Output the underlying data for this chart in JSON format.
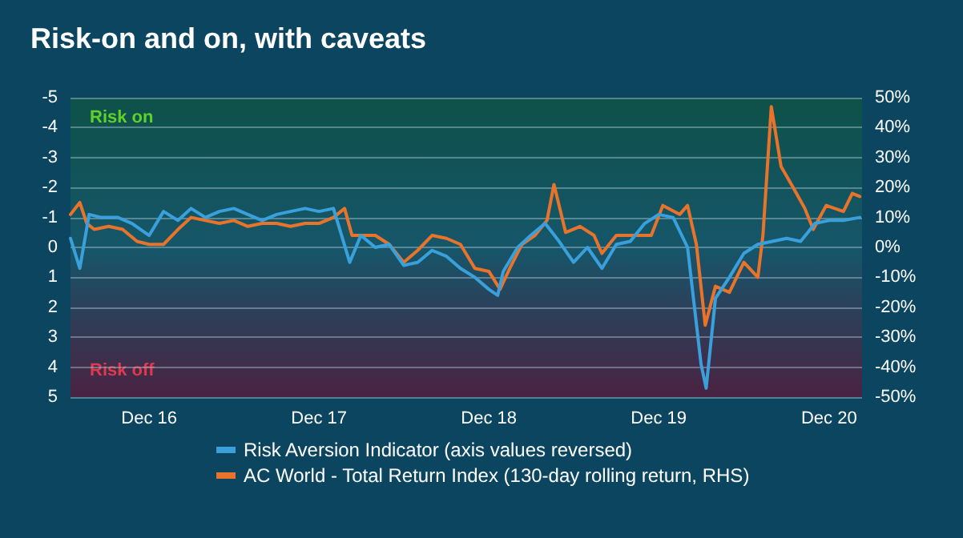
{
  "chart_data": {
    "type": "line",
    "title": "Risk-on and on, with caveats",
    "annotations": [
      "Risk on",
      "Risk off"
    ],
    "xlim": [
      "2016-06-15",
      "2021-02-10"
    ],
    "xticks": [
      {
        "value": "2016-12-01",
        "label": "Dec 16"
      },
      {
        "value": "2017-12-01",
        "label": "Dec 17"
      },
      {
        "value": "2018-12-01",
        "label": "Dec 18"
      },
      {
        "value": "2019-12-01",
        "label": "Dec 19"
      },
      {
        "value": "2020-12-01",
        "label": "Dec 20"
      }
    ],
    "ylim": [
      5,
      -5
    ],
    "yticks": [
      5,
      4,
      3,
      2,
      1,
      0,
      -1,
      -2,
      -3,
      -4,
      -5
    ],
    "y2lim": [
      -50,
      50
    ],
    "y2ticks": [
      {
        "value": -50,
        "label": "-50%"
      },
      {
        "value": -40,
        "label": "-40%"
      },
      {
        "value": -30,
        "label": "-30%"
      },
      {
        "value": -20,
        "label": "-20%"
      },
      {
        "value": -10,
        "label": "-10%"
      },
      {
        "value": 0,
        "label": "0%"
      },
      {
        "value": 10,
        "label": "10%"
      },
      {
        "value": 20,
        "label": "20%"
      },
      {
        "value": 30,
        "label": "30%"
      },
      {
        "value": 40,
        "label": "40%"
      },
      {
        "value": 50,
        "label": "50%"
      }
    ],
    "grid": "y",
    "legend": "bottom",
    "marker": "none",
    "line_style": "solid",
    "series": [
      {
        "name": "Risk Aversion Indicator (axis values reversed)",
        "color": "#3aa0dc",
        "x": [
          "2016-06-15",
          "2016-07-05",
          "2016-07-25",
          "2016-08-20",
          "2016-09-25",
          "2016-10-25",
          "2016-12-01",
          "2017-01-01",
          "2017-02-01",
          "2017-03-01",
          "2017-04-01",
          "2017-05-01",
          "2017-06-01",
          "2017-07-01",
          "2017-08-01",
          "2017-09-01",
          "2017-10-01",
          "2017-11-01",
          "2017-12-01",
          "2018-01-01",
          "2018-02-05",
          "2018-03-01",
          "2018-04-01",
          "2018-05-01",
          "2018-06-01",
          "2018-07-01",
          "2018-08-01",
          "2018-09-01",
          "2018-10-01",
          "2018-11-01",
          "2018-12-01",
          "2018-12-20",
          "2019-01-01",
          "2019-02-01",
          "2019-03-01",
          "2019-04-01",
          "2019-05-01",
          "2019-06-01",
          "2019-07-01",
          "2019-08-01",
          "2019-09-01",
          "2019-10-01",
          "2019-11-01",
          "2019-12-01",
          "2020-01-01",
          "2020-02-01",
          "2020-03-01",
          "2020-03-12",
          "2020-04-01",
          "2020-05-01",
          "2020-06-01",
          "2020-07-01",
          "2020-08-01",
          "2020-09-01",
          "2020-10-01",
          "2020-11-01",
          "2020-12-01",
          "2021-01-01",
          "2021-02-05"
        ],
        "values": [
          -0.3,
          0.7,
          -1.1,
          -1.0,
          -1.0,
          -0.8,
          -0.4,
          -1.2,
          -0.9,
          -1.3,
          -1.0,
          -1.2,
          -1.3,
          -1.1,
          -0.9,
          -1.1,
          -1.2,
          -1.3,
          -1.2,
          -1.3,
          0.5,
          -0.4,
          0.0,
          -0.1,
          0.6,
          0.5,
          0.1,
          0.3,
          0.7,
          1.0,
          1.4,
          1.6,
          0.8,
          0.0,
          -0.4,
          -0.8,
          -0.2,
          0.5,
          0.0,
          0.7,
          -0.1,
          -0.2,
          -0.8,
          -1.1,
          -1.0,
          0.0,
          3.9,
          4.7,
          1.7,
          1.0,
          0.2,
          -0.1,
          -0.2,
          -0.3,
          -0.2,
          -0.8,
          -0.9,
          -0.9,
          -1.0
        ]
      },
      {
        "name": "AC World - Total Return Index (130-day rolling return, RHS)",
        "color": "#e8732a",
        "axis": "y2",
        "x": [
          "2016-06-15",
          "2016-07-05",
          "2016-07-20",
          "2016-08-05",
          "2016-09-05",
          "2016-10-05",
          "2016-11-05",
          "2016-12-01",
          "2017-01-01",
          "2017-02-01",
          "2017-03-01",
          "2017-04-01",
          "2017-05-01",
          "2017-06-01",
          "2017-07-01",
          "2017-08-01",
          "2017-09-01",
          "2017-10-01",
          "2017-11-01",
          "2017-12-01",
          "2018-01-01",
          "2018-01-25",
          "2018-02-10",
          "2018-04-01",
          "2018-05-01",
          "2018-06-01",
          "2018-07-01",
          "2018-08-01",
          "2018-09-01",
          "2018-10-01",
          "2018-11-01",
          "2018-12-01",
          "2018-12-25",
          "2019-01-15",
          "2019-02-10",
          "2019-03-10",
          "2019-04-05",
          "2019-04-20",
          "2019-05-15",
          "2019-06-15",
          "2019-07-15",
          "2019-08-01",
          "2019-09-01",
          "2019-10-01",
          "2019-11-15",
          "2019-12-10",
          "2020-01-15",
          "2020-02-01",
          "2020-02-20",
          "2020-03-10",
          "2020-04-01",
          "2020-05-01",
          "2020-06-01",
          "2020-07-01",
          "2020-07-12",
          "2020-07-30",
          "2020-08-20",
          "2020-09-15",
          "2020-10-10",
          "2020-10-28",
          "2020-11-25",
          "2021-01-01",
          "2021-01-20",
          "2021-02-05"
        ],
        "values": [
          11,
          15,
          8,
          6,
          7,
          6,
          2,
          1,
          1,
          6,
          10,
          9,
          8,
          9,
          7,
          8,
          8,
          7,
          8,
          8,
          10,
          13,
          4,
          4,
          1,
          -5,
          -1,
          4,
          3,
          1,
          -7,
          -8,
          -14,
          -7,
          1,
          4,
          9,
          21,
          5,
          7,
          4,
          -2,
          4,
          4,
          4,
          14,
          11,
          14,
          1,
          -26,
          -13,
          -15,
          -5,
          -10,
          4,
          47,
          27,
          20,
          13,
          6,
          14,
          12,
          18,
          17
        ]
      }
    ]
  }
}
